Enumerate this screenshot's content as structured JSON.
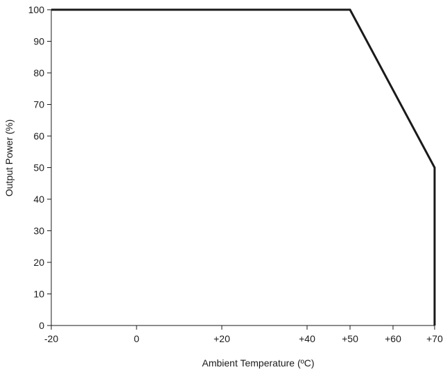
{
  "chart_data": {
    "type": "line",
    "title": "",
    "xlabel": "Ambient Temperature (ºC)",
    "ylabel": "Output Power (%)",
    "x_ticks": [
      {
        "value": -20,
        "label": "-20"
      },
      {
        "value": 0,
        "label": "0"
      },
      {
        "value": 20,
        "label": "+20"
      },
      {
        "value": 40,
        "label": "+40"
      },
      {
        "value": 50,
        "label": "+50"
      },
      {
        "value": 60,
        "label": "+60"
      },
      {
        "value": 70,
        "label": "+70"
      }
    ],
    "y_ticks": [
      {
        "value": 0,
        "label": "0"
      },
      {
        "value": 10,
        "label": "10"
      },
      {
        "value": 20,
        "label": "20"
      },
      {
        "value": 30,
        "label": "30"
      },
      {
        "value": 40,
        "label": "40"
      },
      {
        "value": 50,
        "label": "50"
      },
      {
        "value": 60,
        "label": "60"
      },
      {
        "value": 70,
        "label": "70"
      },
      {
        "value": 80,
        "label": "80"
      },
      {
        "value": 90,
        "label": "90"
      },
      {
        "value": 100,
        "label": "100"
      }
    ],
    "xlim": [
      -20,
      70
    ],
    "ylim": [
      0,
      100
    ],
    "grid": false,
    "series": [
      {
        "color": "#1a1a1a",
        "points": [
          {
            "x": -20,
            "y": 100
          },
          {
            "x": 50,
            "y": 100
          },
          {
            "x": 70,
            "y": 50
          },
          {
            "x": 70,
            "y": 0
          }
        ]
      }
    ]
  }
}
